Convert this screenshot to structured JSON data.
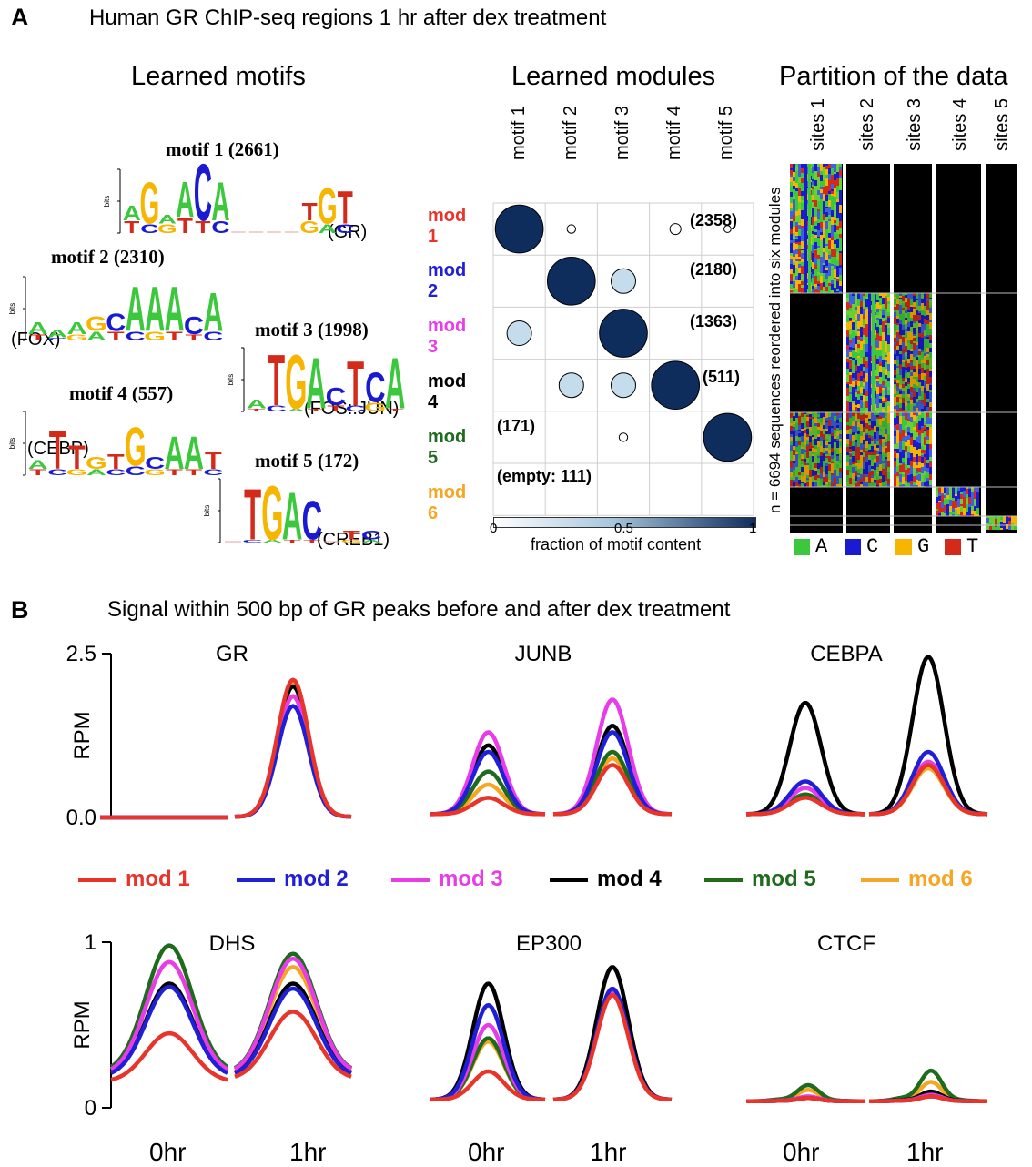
{
  "panel_a": {
    "letter": "A",
    "title": "Human GR ChIP-seq regions 1 hr after dex treatment",
    "learned_motifs_title": "Learned motifs",
    "learned_modules_title": "Learned modules",
    "partition_title": "Partition of the data",
    "bits_label": "bits",
    "motifs": [
      {
        "title": "motif 1 (2661)",
        "tf": "(GR)",
        "seq": [
          "A",
          "G",
          "A",
          "A",
          "C",
          "A",
          "",
          "",
          "",
          "",
          "T",
          "G",
          "T"
        ]
      },
      {
        "title": "motif 2 (2310)",
        "tf": "(FOX)",
        "seq": [
          "A",
          "A",
          "A",
          "G",
          "C",
          "A",
          "A",
          "A",
          "C",
          "A"
        ]
      },
      {
        "title": "motif 3 (1998)",
        "tf": "(FOS::JUN)",
        "seq": [
          "A",
          "T",
          "G",
          "A",
          "C",
          "T",
          "C",
          "A"
        ]
      },
      {
        "title": "motif 4 (557)",
        "tf": "(CEBP)",
        "seq": [
          "A",
          "T",
          "T",
          "G",
          "T",
          "G",
          "C",
          "A",
          "A",
          "T"
        ]
      },
      {
        "title": "motif 5 (172)",
        "tf": "(CREB1)",
        "seq": [
          "",
          "T",
          "G",
          "A",
          "C",
          "",
          "T",
          "C"
        ]
      }
    ],
    "module_columns": [
      "motif 1",
      "motif 2",
      "motif 3",
      "motif 4",
      "motif 5"
    ],
    "modules": [
      {
        "label": "mod 1",
        "color": "#e8342a",
        "count": "(2358)"
      },
      {
        "label": "mod 2",
        "color": "#1f1fd8",
        "count": "(2180)"
      },
      {
        "label": "mod 3",
        "color": "#e83ce8",
        "count": "(1363)"
      },
      {
        "label": "mod 4",
        "color": "#000000",
        "count": "(511)"
      },
      {
        "label": "mod 5",
        "color": "#1e6b1e",
        "count": "(171)"
      },
      {
        "label": "mod 6",
        "color": "#f5a623",
        "count": "(empty: 111)"
      }
    ],
    "module_matrix": [
      [
        0.95,
        0.03,
        0,
        0.05,
        0.02
      ],
      [
        0,
        0.95,
        0.25,
        0,
        0
      ],
      [
        0.25,
        0,
        0.95,
        0,
        0
      ],
      [
        0,
        0.25,
        0.25,
        0.95,
        0
      ],
      [
        0,
        0,
        0.03,
        0,
        0.95
      ],
      [
        0,
        0,
        0,
        0,
        0
      ]
    ],
    "colorbar": {
      "ticks": [
        "0",
        "0.5",
        "1"
      ],
      "label": "fraction of motif content"
    },
    "sites_columns": [
      "sites 1",
      "sites 2",
      "sites 3",
      "sites 4",
      "sites 5"
    ],
    "partition_ylabel": "n = 6694 sequences reordered into six modules",
    "nucleotide_legend": [
      {
        "base": "A",
        "color": "#3cc83c"
      },
      {
        "base": "C",
        "color": "#1a1ad2"
      },
      {
        "base": "G",
        "color": "#f7b500"
      },
      {
        "base": "T",
        "color": "#d42a1a"
      }
    ]
  },
  "panel_b": {
    "letter": "B",
    "title": "Signal within 500 bp of GR peaks before and after dex treatment",
    "ylabel": "RPM",
    "time_labels": [
      "0hr",
      "1hr"
    ],
    "legend": [
      "mod 1",
      "mod 2",
      "mod 3",
      "mod 4",
      "mod 5",
      "mod 6"
    ]
  },
  "chart_data": [
    {
      "type": "line",
      "title": "GR",
      "ylabel": "RPM",
      "ylim": [
        0,
        2.5
      ],
      "yticks": [
        "2.5",
        "0.0"
      ],
      "x": [
        "0hr",
        "1hr"
      ],
      "series": [
        {
          "name": "mod 1",
          "values": [
            0.0,
            2.1
          ]
        },
        {
          "name": "mod 2",
          "values": [
            0.0,
            1.7
          ]
        },
        {
          "name": "mod 3",
          "values": [
            0.0,
            1.85
          ]
        },
        {
          "name": "mod 4",
          "values": [
            0.0,
            2.0
          ]
        },
        {
          "name": "mod 5",
          "values": [
            0.0,
            1.85
          ]
        },
        {
          "name": "mod 6",
          "values": [
            0.0,
            2.05
          ]
        }
      ]
    },
    {
      "type": "line",
      "title": "JUNB",
      "ylim": [
        0,
        2.5
      ],
      "x": [
        "0hr",
        "1hr"
      ],
      "series": [
        {
          "name": "mod 1",
          "values": [
            0.3,
            0.8
          ]
        },
        {
          "name": "mod 2",
          "values": [
            1.0,
            1.3
          ]
        },
        {
          "name": "mod 3",
          "values": [
            1.3,
            1.8
          ]
        },
        {
          "name": "mod 4",
          "values": [
            1.1,
            1.4
          ]
        },
        {
          "name": "mod 5",
          "values": [
            0.7,
            1.0
          ]
        },
        {
          "name": "mod 6",
          "values": [
            0.5,
            0.9
          ]
        }
      ]
    },
    {
      "type": "line",
      "title": "CEBPA",
      "ylim": [
        0,
        2.5
      ],
      "x": [
        "0hr",
        "1hr"
      ],
      "series": [
        {
          "name": "mod 1",
          "values": [
            0.3,
            0.8
          ]
        },
        {
          "name": "mod 2",
          "values": [
            0.55,
            1.0
          ]
        },
        {
          "name": "mod 3",
          "values": [
            0.45,
            0.85
          ]
        },
        {
          "name": "mod 4",
          "values": [
            1.75,
            2.45
          ]
        },
        {
          "name": "mod 5",
          "values": [
            0.35,
            0.8
          ]
        },
        {
          "name": "mod 6",
          "values": [
            0.35,
            0.75
          ]
        }
      ]
    },
    {
      "type": "line",
      "title": "DHS",
      "ylabel": "RPM",
      "ylim": [
        0,
        1
      ],
      "yticks": [
        "1",
        "0"
      ],
      "x": [
        "0hr",
        "1hr"
      ],
      "series": [
        {
          "name": "mod 1",
          "values": [
            0.45,
            0.58
          ]
        },
        {
          "name": "mod 2",
          "values": [
            0.73,
            0.72
          ]
        },
        {
          "name": "mod 3",
          "values": [
            0.88,
            0.9
          ]
        },
        {
          "name": "mod 4",
          "values": [
            0.75,
            0.75
          ]
        },
        {
          "name": "mod 5",
          "values": [
            0.98,
            0.93
          ]
        },
        {
          "name": "mod 6",
          "values": [
            0.88,
            0.85
          ]
        }
      ]
    },
    {
      "type": "line",
      "title": "EP300",
      "ylim": [
        0,
        1
      ],
      "x": [
        "0hr",
        "1hr"
      ],
      "series": [
        {
          "name": "mod 1",
          "values": [
            0.22,
            0.68
          ]
        },
        {
          "name": "mod 2",
          "values": [
            0.62,
            0.72
          ]
        },
        {
          "name": "mod 3",
          "values": [
            0.5,
            0.7
          ]
        },
        {
          "name": "mod 4",
          "values": [
            0.75,
            0.85
          ]
        },
        {
          "name": "mod 5",
          "values": [
            0.42,
            0.7
          ]
        },
        {
          "name": "mod 6",
          "values": [
            0.4,
            0.7
          ]
        }
      ]
    },
    {
      "type": "line",
      "title": "CTCF",
      "ylim": [
        0,
        1
      ],
      "x": [
        "0hr",
        "1hr"
      ],
      "series": [
        {
          "name": "mod 1",
          "values": [
            0.06,
            0.07
          ]
        },
        {
          "name": "mod 2",
          "values": [
            0.06,
            0.07
          ]
        },
        {
          "name": "mod 3",
          "values": [
            0.07,
            0.08
          ]
        },
        {
          "name": "mod 4",
          "values": [
            0.06,
            0.1
          ]
        },
        {
          "name": "mod 5",
          "values": [
            0.14,
            0.23
          ]
        },
        {
          "name": "mod 6",
          "values": [
            0.11,
            0.16
          ]
        }
      ]
    }
  ]
}
